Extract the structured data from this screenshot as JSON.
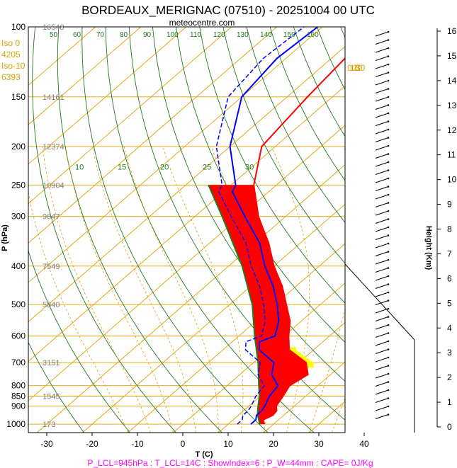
{
  "chart_data": {
    "type": "skew-t",
    "title": "BORDEAUX_MERIGNAC (07510) - 20251004 00 UTC",
    "subtitle": "meteocentre.com",
    "xlabel": "T (C)",
    "ylabel": "P (hPa)",
    "y2label": "Height (Km)",
    "xlim": [
      -35,
      45
    ],
    "ylim": [
      1050,
      100
    ],
    "x_ticks": [
      -30,
      -20,
      -10,
      0,
      10,
      20,
      30,
      40
    ],
    "p_ticks": [
      100,
      150,
      200,
      250,
      300,
      400,
      500,
      600,
      700,
      800,
      850,
      900,
      1000
    ],
    "height_ticks_km": [
      0,
      1,
      2,
      3,
      4,
      5,
      6,
      7,
      8,
      9,
      10,
      11,
      12,
      13,
      14,
      15,
      16
    ],
    "geopotential_heights_m": [
      {
        "p": 100,
        "z": "16548"
      },
      {
        "p": 150,
        "z": "14161"
      },
      {
        "p": 200,
        "z": "12374"
      },
      {
        "p": 250,
        "z": "10904"
      },
      {
        "p": 300,
        "z": "9647"
      },
      {
        "p": 400,
        "z": "7549"
      },
      {
        "p": 500,
        "z": "5840"
      },
      {
        "p": 700,
        "z": "3151"
      },
      {
        "p": 850,
        "z": "1545"
      },
      {
        "p": 1000,
        "z": "173"
      }
    ],
    "freezing_levels": [
      {
        "label": "Iso 0",
        "value": "4205"
      },
      {
        "label": "Iso-10",
        "value": "6393"
      }
    ],
    "isotherm_labels": [
      50,
      60,
      70,
      80,
      90,
      100,
      110,
      120,
      130,
      140,
      150,
      160
    ],
    "mixing_ratio_labels": [
      40,
      30,
      25,
      20,
      10,
      16,
      0,
      20
    ],
    "dry_adiabat_labels": [
      10,
      15,
      20,
      25,
      30
    ],
    "moist_adiabat_labels": [
      0,
      10,
      20,
      30
    ],
    "wet_bulb_labels": [
      3,
      5
    ],
    "temperature": [
      {
        "p": 1000,
        "t": 18.0
      },
      {
        "p": 975,
        "t": 16.6
      },
      {
        "p": 950,
        "t": 17.6
      },
      {
        "p": 925,
        "t": 17.3
      },
      {
        "p": 900,
        "t": 16.0
      },
      {
        "p": 850,
        "t": 15.0
      },
      {
        "p": 800,
        "t": 13.8
      },
      {
        "p": 750,
        "t": 15.0
      },
      {
        "p": 700,
        "t": 11.6
      },
      {
        "p": 650,
        "t": 4.6
      },
      {
        "p": 600,
        "t": 1.0
      },
      {
        "p": 550,
        "t": -2.5
      },
      {
        "p": 500,
        "t": -7.5
      },
      {
        "p": 450,
        "t": -13.0
      },
      {
        "p": 400,
        "t": -20.0
      },
      {
        "p": 350,
        "t": -27.0
      },
      {
        "p": 300,
        "t": -36.0
      },
      {
        "p": 250,
        "t": -45.0
      },
      {
        "p": 200,
        "t": -53.0
      },
      {
        "p": 150,
        "t": -55.5
      },
      {
        "p": 120,
        "t": -57.0
      },
      {
        "p": 100,
        "t": -59.0
      }
    ],
    "dewpoint": [
      {
        "p": 1000,
        "t": 15.0
      },
      {
        "p": 975,
        "t": 15.0
      },
      {
        "p": 950,
        "t": 14.0
      },
      {
        "p": 925,
        "t": 14.0
      },
      {
        "p": 900,
        "t": 13.5
      },
      {
        "p": 850,
        "t": 12.0
      },
      {
        "p": 800,
        "t": 11.2
      },
      {
        "p": 750,
        "t": 7.0
      },
      {
        "p": 700,
        "t": 4.5
      },
      {
        "p": 650,
        "t": -2.0
      },
      {
        "p": 620,
        "t": -4.0
      },
      {
        "p": 600,
        "t": -2.0
      },
      {
        "p": 550,
        "t": -5.0
      },
      {
        "p": 500,
        "t": -9.5
      },
      {
        "p": 450,
        "t": -15.0
      },
      {
        "p": 400,
        "t": -22.0
      },
      {
        "p": 350,
        "t": -29.0
      },
      {
        "p": 300,
        "t": -39.0
      },
      {
        "p": 260,
        "t": -48.0
      },
      {
        "p": 250,
        "t": -49.0
      },
      {
        "p": 200,
        "t": -60.0
      },
      {
        "p": 150,
        "t": -70.0
      },
      {
        "p": 120,
        "t": -72.0
      },
      {
        "p": 100,
        "t": -71.0
      }
    ],
    "parcel": [
      {
        "p": 1000,
        "t": 17.0
      },
      {
        "p": 945,
        "t": 14.0
      },
      {
        "p": 900,
        "t": 12.0
      },
      {
        "p": 850,
        "t": 9.8
      },
      {
        "p": 800,
        "t": 7.0
      },
      {
        "p": 700,
        "t": 1.0
      },
      {
        "p": 600,
        "t": -6.5
      },
      {
        "p": 500,
        "t": -15.0
      },
      {
        "p": 400,
        "t": -27.0
      },
      {
        "p": 300,
        "t": -44.0
      },
      {
        "p": 250,
        "t": -55.0
      }
    ],
    "cape_shading_color": "#ff0000",
    "instability_shading_color": "#ffff00",
    "indices_text": "P_LCL=945hPa : T_LCL=14C : ShowIndex=6 : P_W=44mm : CAPE= 0J/Kg",
    "colors": {
      "temperature": "#ff0000",
      "dewpoint": "#0000ff",
      "isobars_isotherms": "#e0a000",
      "dry_adiabats": "#1f7a1f",
      "moist_adiabats": "#e0a000",
      "freezing_labels": "#e0a000",
      "indices": "#ff00ff",
      "height_labels": "#808080"
    }
  }
}
